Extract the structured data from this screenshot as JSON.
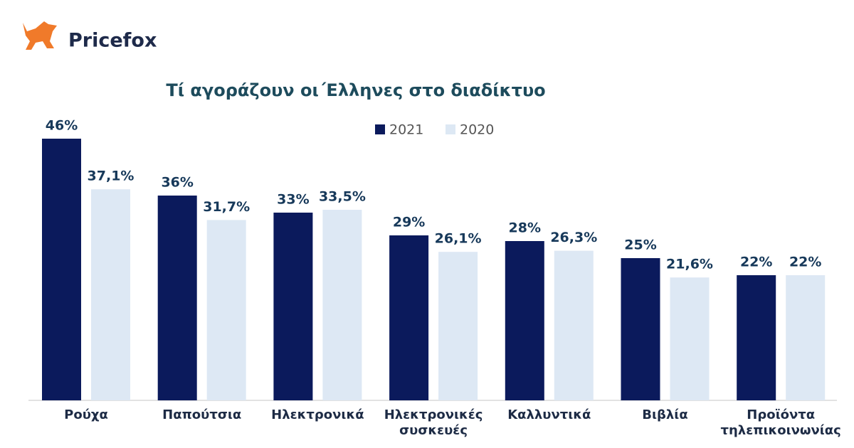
{
  "logo": "Pricefox",
  "chart_data": {
    "type": "bar",
    "title": "Τί αγοράζουν οι΄Ελληνες στο διαδίκτυο",
    "categories": [
      "Ρούχα",
      "Παπούτσια",
      "Ηλεκτρονικά",
      "Ηλεκτρονικές συσκευές",
      "Καλλυντικά",
      "Βιβλία",
      "Προϊόντα τηλεπικοινωνίας"
    ],
    "series": [
      {
        "name": "2021",
        "color": "#0b1a5c",
        "values": [
          46,
          36,
          33,
          29,
          28,
          25,
          22
        ],
        "value_labels": [
          "46%",
          "36%",
          "33%",
          "29%",
          "28%",
          "25%",
          "22%"
        ]
      },
      {
        "name": "2020",
        "color": "#dde8f4",
        "values": [
          37.1,
          31.7,
          33.5,
          26.1,
          26.3,
          21.6,
          22
        ],
        "value_labels": [
          "37,1%",
          "31,7%",
          "33,5%",
          "26,1%",
          "26,3%",
          "21,6%",
          "22%"
        ]
      }
    ]
  }
}
